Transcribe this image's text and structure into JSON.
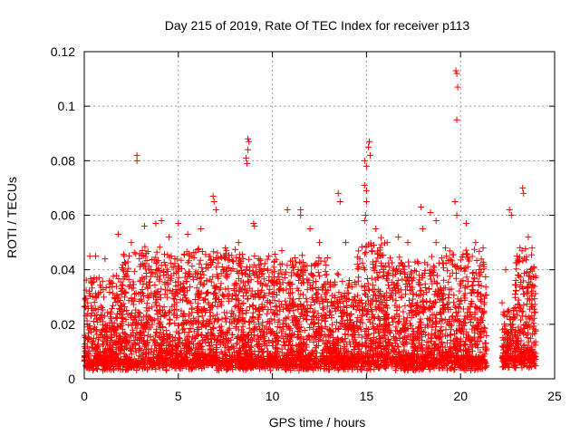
{
  "chart_data": {
    "type": "scatter",
    "title": "Day 215 of 2019, Rate Of TEC Index for receiver p113",
    "xlabel": "GPS time / hours",
    "ylabel": "ROTI / TECUs",
    "xlim": [
      0,
      25
    ],
    "ylim": [
      0,
      0.12
    ],
    "xticks": [
      0,
      5,
      10,
      15,
      20,
      25
    ],
    "xtick_labels": [
      "0",
      "5",
      "10",
      "15",
      "20",
      "25"
    ],
    "yticks": [
      0,
      0.02,
      0.04,
      0.06,
      0.08,
      0.1,
      0.12
    ],
    "ytick_labels": [
      "0",
      "0.02",
      "0.04",
      "0.06",
      "0.08",
      "0.1",
      "0.12"
    ],
    "grid": true,
    "marker": "plus",
    "color": "#ff0000",
    "series": [
      {
        "name": "ROTI",
        "points": [
          [
            2.8,
            0.082
          ],
          [
            2.8,
            0.08
          ],
          [
            8.7,
            0.088
          ],
          [
            8.75,
            0.087
          ],
          [
            8.7,
            0.084
          ],
          [
            8.6,
            0.081
          ],
          [
            8.65,
            0.079
          ],
          [
            6.85,
            0.067
          ],
          [
            6.9,
            0.065
          ],
          [
            7.0,
            0.062
          ],
          [
            10.8,
            0.062
          ],
          [
            11.5,
            0.062
          ],
          [
            11.5,
            0.06
          ],
          [
            13.5,
            0.068
          ],
          [
            13.6,
            0.065
          ],
          [
            14.9,
            0.08
          ],
          [
            15.0,
            0.078
          ],
          [
            15.1,
            0.085
          ],
          [
            15.15,
            0.087
          ],
          [
            15.2,
            0.082
          ],
          [
            14.9,
            0.071
          ],
          [
            15.0,
            0.069
          ],
          [
            15.0,
            0.065
          ],
          [
            14.95,
            0.06
          ],
          [
            14.9,
            0.058
          ],
          [
            19.75,
            0.113
          ],
          [
            19.8,
            0.112
          ],
          [
            19.85,
            0.107
          ],
          [
            19.8,
            0.095
          ],
          [
            19.7,
            0.065
          ],
          [
            19.8,
            0.06
          ],
          [
            17.9,
            0.063
          ],
          [
            18.4,
            0.061
          ],
          [
            18.7,
            0.058
          ],
          [
            22.6,
            0.062
          ],
          [
            22.7,
            0.06
          ],
          [
            23.3,
            0.07
          ],
          [
            23.35,
            0.068
          ],
          [
            9.0,
            0.057
          ],
          [
            9.05,
            0.056
          ],
          [
            3.8,
            0.057
          ],
          [
            4.1,
            0.058
          ],
          [
            5.0,
            0.057
          ],
          [
            0.3,
            0.045
          ],
          [
            0.6,
            0.045
          ],
          [
            1.1,
            0.044
          ],
          [
            1.8,
            0.053
          ],
          [
            2.5,
            0.05
          ],
          [
            3.2,
            0.056
          ],
          [
            4.5,
            0.052
          ],
          [
            5.5,
            0.053
          ],
          [
            6.2,
            0.055
          ],
          [
            7.5,
            0.048
          ],
          [
            8.2,
            0.05
          ],
          [
            9.8,
            0.045
          ],
          [
            10.5,
            0.047
          ],
          [
            12.0,
            0.055
          ],
          [
            12.5,
            0.05
          ],
          [
            13.9,
            0.05
          ],
          [
            15.5,
            0.055
          ],
          [
            16.1,
            0.05
          ],
          [
            16.7,
            0.052
          ],
          [
            17.2,
            0.05
          ],
          [
            18.0,
            0.055
          ],
          [
            18.7,
            0.05
          ],
          [
            19.2,
            0.048
          ],
          [
            20.3,
            0.057
          ],
          [
            20.8,
            0.05
          ],
          [
            21.2,
            0.048
          ],
          [
            22.4,
            0.04
          ],
          [
            23.0,
            0.045
          ],
          [
            23.6,
            0.052
          ],
          [
            23.8,
            0.048
          ]
        ],
        "bands": [
          {
            "x": [
              0.0,
              2.0
            ],
            "ymin": 0.003,
            "ymax": 0.035
          },
          {
            "x": [
              2.0,
              6.5
            ],
            "ymin": 0.003,
            "ymax": 0.045
          },
          {
            "x": [
              6.5,
              8.5
            ],
            "ymin": 0.003,
            "ymax": 0.045
          },
          {
            "x": [
              8.5,
              10.0
            ],
            "ymin": 0.003,
            "ymax": 0.042
          },
          {
            "x": [
              10.0,
              13.0
            ],
            "ymin": 0.003,
            "ymax": 0.042
          },
          {
            "x": [
              13.0,
              14.5
            ],
            "ymin": 0.003,
            "ymax": 0.035
          },
          {
            "x": [
              14.5,
              16.0
            ],
            "ymin": 0.003,
            "ymax": 0.048
          },
          {
            "x": [
              16.0,
              19.0
            ],
            "ymin": 0.003,
            "ymax": 0.042
          },
          {
            "x": [
              19.0,
              21.4
            ],
            "ymin": 0.003,
            "ymax": 0.045
          },
          {
            "x": [
              22.2,
              22.9
            ],
            "ymin": 0.004,
            "ymax": 0.025
          },
          {
            "x": [
              22.9,
              24.0
            ],
            "ymin": 0.004,
            "ymax": 0.045
          }
        ],
        "gaps": [
          [
            21.4,
            22.2
          ]
        ]
      }
    ]
  }
}
